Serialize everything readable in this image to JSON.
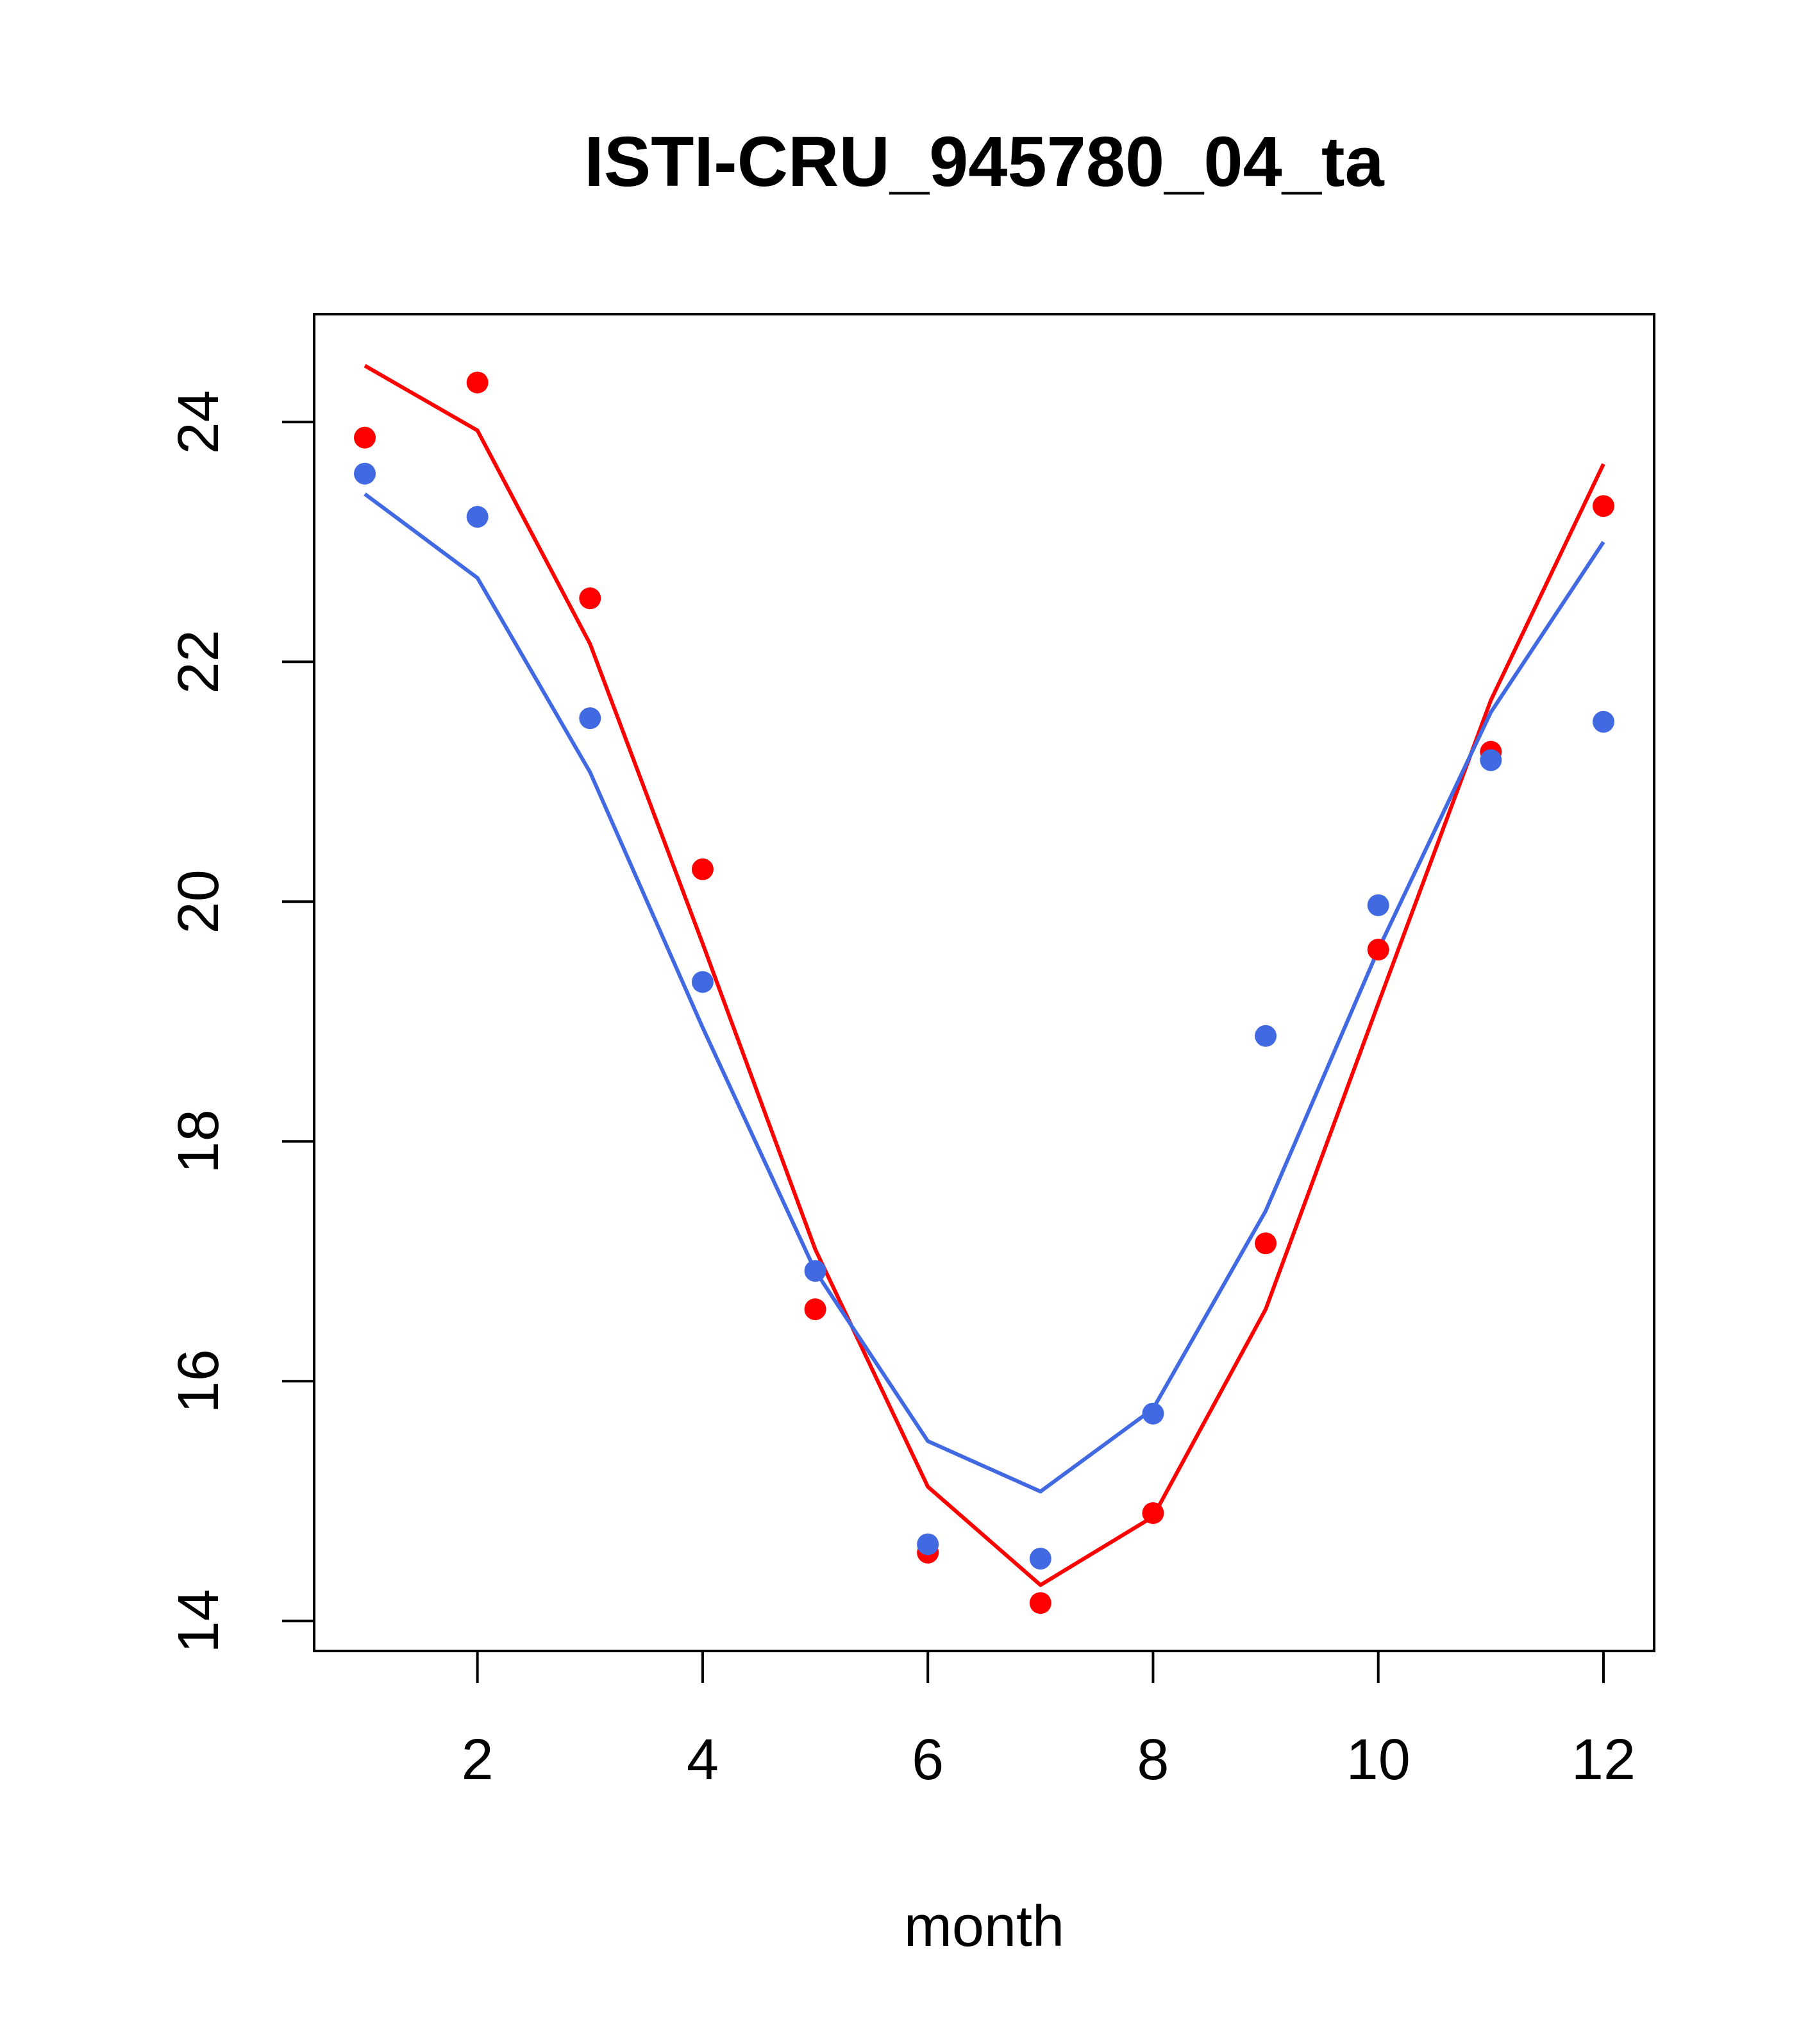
{
  "chart_data": {
    "type": "scatter",
    "title": "ISTI-CRU_945780_04_ta",
    "xlabel": "month",
    "ylabel": "",
    "xlim": [
      0.55,
      12.45
    ],
    "ylim": [
      13.75,
      24.9
    ],
    "xticks": [
      2,
      4,
      6,
      8,
      10,
      12
    ],
    "yticks": [
      14,
      16,
      18,
      20,
      22,
      24
    ],
    "grid": false,
    "x": [
      1,
      2,
      3,
      4,
      5,
      6,
      7,
      8,
      9,
      10,
      11,
      12
    ],
    "series": [
      {
        "color": "#ff0000",
        "points": [
          23.87,
          24.33,
          22.53,
          20.27,
          16.6,
          14.57,
          14.15,
          14.9,
          17.15,
          19.6,
          21.25,
          23.3
        ],
        "line": [
          24.47,
          23.93,
          22.15,
          19.65,
          17.1,
          15.12,
          14.3,
          14.87,
          16.6,
          19.15,
          21.68,
          23.65
        ]
      },
      {
        "color": "#4169e1",
        "points": [
          23.57,
          23.21,
          21.53,
          19.33,
          16.92,
          14.64,
          14.52,
          15.73,
          18.88,
          19.97,
          21.18,
          21.5
        ],
        "line": [
          23.4,
          22.7,
          21.08,
          18.95,
          16.92,
          15.5,
          15.08,
          15.77,
          17.42,
          19.6,
          21.58,
          23.0
        ]
      }
    ]
  }
}
